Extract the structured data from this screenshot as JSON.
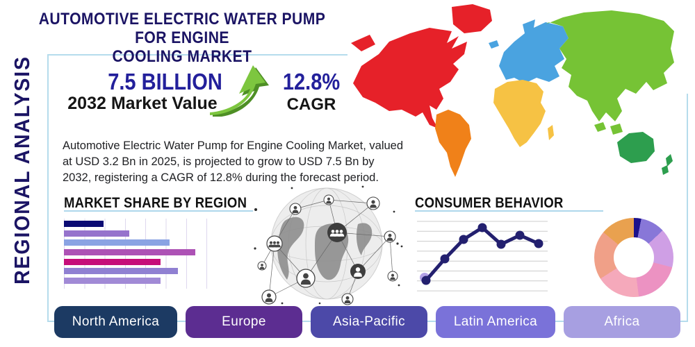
{
  "header": {
    "title_line1": "AUTOMOTIVE ELECTRIC WATER PUMP FOR ENGINE",
    "title_line2": "COOLING MARKET",
    "sidebar_label": "REGIONAL ANALYSIS"
  },
  "stats": {
    "market_value": "7.5 BILLION",
    "market_value_label": "2032 Market Value",
    "cagr_value": "12.8%",
    "cagr_label": "CAGR"
  },
  "description": "Automotive Electric Water Pump for Engine Cooling Market, valued at USD 3.2 Bn in 2025, is projected to grow to USD 7.5 Bn by 2032, registering a CAGR of 12.8% during the forecast period.",
  "theme": {
    "accent_line": "#aed7eb",
    "title_color": "#1b1464",
    "arrow_green": "#7dc63f",
    "arrow_green_dark": "#4e8f25"
  },
  "map": {
    "colors": {
      "north_america": "#e62129",
      "greenland": "#e62129",
      "south_america": "#f08119",
      "europe": "#4aa3e0",
      "africa": "#f6c244",
      "asia": "#76c335",
      "australia": "#2d9e4e"
    }
  },
  "chart_data": [
    {
      "id": "market_share_by_region",
      "type": "bar",
      "title": "MARKET SHARE BY REGION",
      "orientation": "horizontal",
      "xlim": [
        0,
        100
      ],
      "grid": true,
      "values": [
        28,
        46,
        74,
        92,
        68,
        80,
        68
      ],
      "colors": [
        "#0b0b73",
        "#9673cc",
        "#8aa3e3",
        "#ad52b5",
        "#c60d79",
        "#9080d2",
        "#a18ad6"
      ]
    },
    {
      "id": "consumer_behavior",
      "type": "line",
      "title": "CONSUMER BEHAVIOR",
      "ylim": [
        0,
        100
      ],
      "grid": "horizontal",
      "gridline_count": 8,
      "line_color": "#23206f",
      "first_point_halo_color": "#b3a1e6",
      "values": [
        15,
        46,
        74,
        91,
        67,
        80,
        68
      ]
    },
    {
      "id": "regional_share_donut",
      "type": "pie",
      "donut": true,
      "segments": [
        {
          "color": "#1c128c",
          "value": 3
        },
        {
          "color": "#8877d8",
          "value": 10
        },
        {
          "color": "#cf9fe5",
          "value": 16
        },
        {
          "color": "#ec92c2",
          "value": 19
        },
        {
          "color": "#f5a9bb",
          "value": 18
        },
        {
          "color": "#f0a088",
          "value": 20
        },
        {
          "color": "#e9a14f",
          "value": 14
        }
      ]
    }
  ],
  "buttons": [
    {
      "label": "North America",
      "color": "#1c3a63"
    },
    {
      "label": "Europe",
      "color": "#5c2d91"
    },
    {
      "label": "Asia-Pacific",
      "color": "#4c49a8"
    },
    {
      "label": "Latin America",
      "color": "#7a72d9"
    },
    {
      "label": "Africa",
      "color": "#a79fe1"
    }
  ]
}
